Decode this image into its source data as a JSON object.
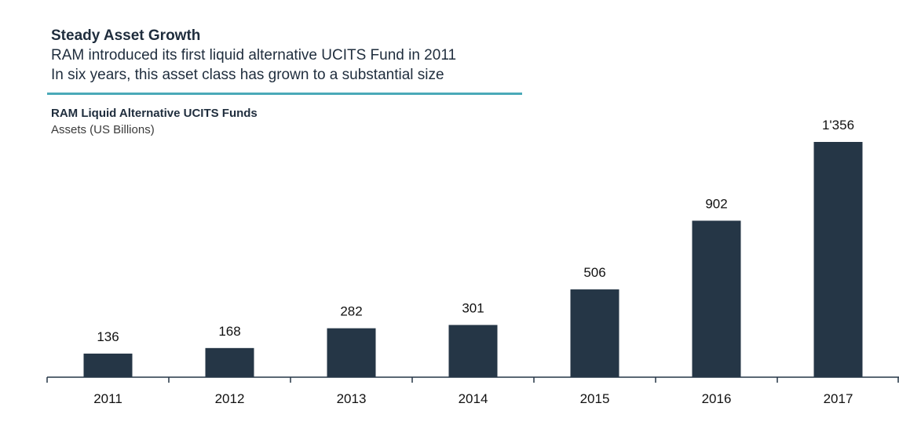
{
  "header": {
    "title": "Steady Asset Growth",
    "subtitle_lines": [
      "RAM introduced its first liquid alternative UCITS Fund in 2011",
      "In six years, this asset class has grown to a substantial size"
    ]
  },
  "colors": {
    "bar": "#253646",
    "axis": "#253646",
    "rule": "#4aa9b8"
  },
  "chart_data": {
    "type": "bar",
    "title": "RAM Liquid Alternative UCITS Funds",
    "ylabel": "Assets (US Billions)",
    "categories": [
      "2011",
      "2012",
      "2013",
      "2014",
      "2015",
      "2016",
      "2017"
    ],
    "values": [
      136,
      168,
      282,
      301,
      506,
      902,
      1356
    ],
    "value_labels": [
      "136",
      "168",
      "282",
      "301",
      "506",
      "902",
      "1'356"
    ],
    "ylim": [
      0,
      1356
    ],
    "grid": false
  }
}
